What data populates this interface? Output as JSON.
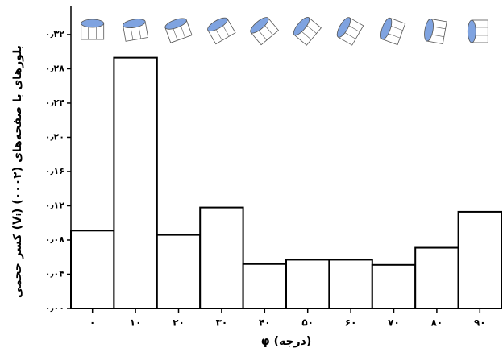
{
  "chart_data": {
    "type": "bar",
    "ylabel": "کسر حجمی (Vᵢ) بلورهای با صفحه‌های (۰۰۰۲)",
    "xlabel": "φ (درجه)",
    "categories": [
      "۰",
      "۱۰",
      "۲۰",
      "۳۰",
      "۴۰",
      "۵۰",
      "۶۰",
      "۷۰",
      "۸۰",
      "۹۰"
    ],
    "values": [
      0.091,
      0.293,
      0.086,
      0.118,
      0.052,
      0.057,
      0.057,
      0.051,
      0.071,
      0.113
    ],
    "color": "#ffffff",
    "ylim": [
      0,
      0.335
    ],
    "yticks": [
      {
        "value": 0,
        "label": "۰٫۰۰"
      },
      {
        "value": 0.04,
        "label": "۰٫۰۴"
      },
      {
        "value": 0.08,
        "label": "۰٫۰۸"
      },
      {
        "value": 0.12,
        "label": "۰٫۱۲"
      },
      {
        "value": 0.16,
        "label": "۰٫۱۶"
      },
      {
        "value": 0.2,
        "label": "۰٫۲۰"
      },
      {
        "value": 0.24,
        "label": "۰٫۲۴"
      },
      {
        "value": 0.28,
        "label": "۰٫۲۸"
      },
      {
        "value": 0.32,
        "label": "۰٫۳۲"
      }
    ],
    "grid": false
  }
}
